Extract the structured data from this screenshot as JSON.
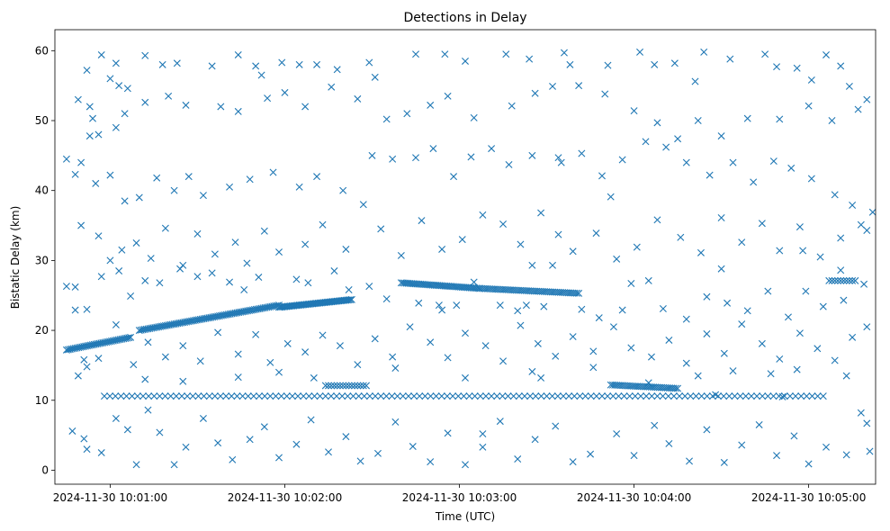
{
  "chart_data": {
    "type": "scatter",
    "title": "Detections in Delay",
    "xlabel": "Time (UTC)",
    "ylabel": "Bistatic Delay (km)",
    "marker": "x",
    "color": "#1f77b4",
    "x_unit": "seconds after 2024-11-30 10:00:00 UTC",
    "xlim": [
      41,
      323
    ],
    "ylim": [
      -2,
      63
    ],
    "xticks": [
      {
        "value": 60,
        "label": "2024-11-30 10:01:00"
      },
      {
        "value": 120,
        "label": "2024-11-30 10:02:00"
      },
      {
        "value": 180,
        "label": "2024-11-30 10:03:00"
      },
      {
        "value": 240,
        "label": "2024-11-30 10:04:00"
      },
      {
        "value": 300,
        "label": "2024-11-30 10:05:00"
      }
    ],
    "yticks": [
      {
        "value": 0,
        "label": "0"
      },
      {
        "value": 10,
        "label": "10"
      },
      {
        "value": 20,
        "label": "20"
      },
      {
        "value": 30,
        "label": "30"
      },
      {
        "value": 40,
        "label": "40"
      },
      {
        "value": 50,
        "label": "50"
      },
      {
        "value": 60,
        "label": "60"
      }
    ],
    "tracks": [
      {
        "name": "track-1",
        "x_start": 45,
        "x_end": 67,
        "y_start": 17.2,
        "y_end": 19.0,
        "step": 0.6
      },
      {
        "name": "track-2",
        "x_start": 70,
        "x_end": 118,
        "y_start": 20.0,
        "y_end": 23.6,
        "step": 0.6
      },
      {
        "name": "track-3",
        "x_start": 118,
        "x_end": 143,
        "y_start": 23.3,
        "y_end": 24.4,
        "step": 0.5
      },
      {
        "name": "track-4",
        "x_start": 160,
        "x_end": 187,
        "y_start": 26.8,
        "y_end": 26.0,
        "step": 0.6
      },
      {
        "name": "track-5",
        "x_start": 187,
        "x_end": 221,
        "y_start": 26.0,
        "y_end": 25.3,
        "step": 0.7
      },
      {
        "name": "track-6",
        "x_start": 232,
        "x_end": 255,
        "y_start": 12.2,
        "y_end": 11.7,
        "step": 0.7
      },
      {
        "name": "static-10.6",
        "x_start": 58,
        "x_end": 305,
        "y_start": 10.6,
        "y_end": 10.6,
        "step": 1.9
      },
      {
        "name": "static-12",
        "x_start": 134,
        "x_end": 148,
        "y_start": 12.1,
        "y_end": 12.1,
        "step": 1.0
      },
      {
        "name": "static-27",
        "x_start": 307,
        "x_end": 316,
        "y_start": 27.1,
        "y_end": 27.1,
        "step": 1.0
      }
    ],
    "clutter_points": [
      [
        57,
        59.4
      ],
      [
        62,
        58.2
      ],
      [
        60,
        56
      ],
      [
        63,
        55
      ],
      [
        52,
        57.2
      ],
      [
        49,
        53
      ],
      [
        66,
        54.6
      ],
      [
        53,
        52
      ],
      [
        65,
        51
      ],
      [
        54,
        50.3
      ],
      [
        62,
        49
      ],
      [
        56,
        48
      ],
      [
        53,
        47.8
      ],
      [
        72,
        59.3
      ],
      [
        78,
        58
      ],
      [
        83,
        58.2
      ],
      [
        95,
        57.8
      ],
      [
        104,
        59.4
      ],
      [
        110,
        57.8
      ],
      [
        112,
        56.5
      ],
      [
        119,
        58.3
      ],
      [
        125,
        58
      ],
      [
        131,
        58
      ],
      [
        138,
        57.3
      ],
      [
        149,
        58.3
      ],
      [
        151,
        56.2
      ],
      [
        165,
        59.5
      ],
      [
        175,
        59.5
      ],
      [
        182,
        58.5
      ],
      [
        196,
        59.5
      ],
      [
        204,
        58.8
      ],
      [
        216,
        59.7
      ],
      [
        242,
        59.8
      ],
      [
        264,
        59.8
      ],
      [
        273,
        58.8
      ],
      [
        285,
        59.5
      ],
      [
        289,
        57.7
      ],
      [
        306,
        59.4
      ],
      [
        314,
        54.9
      ],
      [
        301,
        55.8
      ],
      [
        296,
        57.5
      ],
      [
        311,
        57.8
      ],
      [
        261,
        55.6
      ],
      [
        254,
        58.2
      ],
      [
        247,
        58
      ],
      [
        231,
        57.9
      ],
      [
        218,
        58
      ],
      [
        72,
        52.6
      ],
      [
        80,
        53.5
      ],
      [
        86,
        52.2
      ],
      [
        98,
        52
      ],
      [
        104,
        51.3
      ],
      [
        114,
        53.2
      ],
      [
        120,
        54
      ],
      [
        127,
        52
      ],
      [
        136,
        54.8
      ],
      [
        145,
        53.1
      ],
      [
        155,
        50.2
      ],
      [
        162,
        51
      ],
      [
        170,
        52.2
      ],
      [
        176,
        53.5
      ],
      [
        185,
        50.4
      ],
      [
        198,
        52.1
      ],
      [
        206,
        53.9
      ],
      [
        212,
        54.9
      ],
      [
        221,
        55
      ],
      [
        230,
        53.8
      ],
      [
        240,
        51.4
      ],
      [
        248,
        49.7
      ],
      [
        255,
        47.4
      ],
      [
        262,
        50
      ],
      [
        270,
        47.8
      ],
      [
        279,
        50.3
      ],
      [
        290,
        50.2
      ],
      [
        300,
        52.1
      ],
      [
        308,
        50
      ],
      [
        317,
        51.6
      ],
      [
        320,
        53
      ],
      [
        50,
        44
      ],
      [
        55,
        41
      ],
      [
        60,
        42.2
      ],
      [
        65,
        38.5
      ],
      [
        70,
        39
      ],
      [
        76,
        41.8
      ],
      [
        82,
        40
      ],
      [
        87,
        42
      ],
      [
        92,
        39.3
      ],
      [
        101,
        40.5
      ],
      [
        108,
        41.6
      ],
      [
        116,
        42.6
      ],
      [
        125,
        40.5
      ],
      [
        131,
        42
      ],
      [
        140,
        40
      ],
      [
        150,
        45
      ],
      [
        157,
        44.5
      ],
      [
        165,
        44.7
      ],
      [
        171,
        46
      ],
      [
        178,
        42
      ],
      [
        184,
        44.8
      ],
      [
        191,
        46
      ],
      [
        197,
        43.7
      ],
      [
        205,
        45
      ],
      [
        214,
        44.7
      ],
      [
        222,
        45.3
      ],
      [
        229,
        42.1
      ],
      [
        236,
        44.4
      ],
      [
        244,
        47
      ],
      [
        251,
        46.2
      ],
      [
        258,
        44
      ],
      [
        266,
        42.2
      ],
      [
        274,
        44
      ],
      [
        281,
        41.2
      ],
      [
        288,
        44.2
      ],
      [
        294,
        43.2
      ],
      [
        301,
        41.7
      ],
      [
        309,
        39.4
      ],
      [
        315,
        37.9
      ],
      [
        322,
        36.9
      ],
      [
        45,
        44.5
      ],
      [
        48,
        42.3
      ],
      [
        50,
        35
      ],
      [
        56,
        33.5
      ],
      [
        60,
        30
      ],
      [
        64,
        31.5
      ],
      [
        69,
        32.5
      ],
      [
        74,
        30.3
      ],
      [
        79,
        34.6
      ],
      [
        85,
        29.3
      ],
      [
        90,
        33.8
      ],
      [
        96,
        30.9
      ],
      [
        103,
        32.6
      ],
      [
        107,
        29.6
      ],
      [
        113,
        34.2
      ],
      [
        118,
        31.2
      ],
      [
        127,
        32.3
      ],
      [
        133,
        35.1
      ],
      [
        141,
        31.6
      ],
      [
        147,
        38
      ],
      [
        153,
        34.5
      ],
      [
        160,
        30.7
      ],
      [
        167,
        35.7
      ],
      [
        174,
        31.6
      ],
      [
        181,
        33
      ],
      [
        188,
        36.5
      ],
      [
        195,
        35.2
      ],
      [
        201,
        32.3
      ],
      [
        208,
        36.8
      ],
      [
        214,
        33.7
      ],
      [
        219,
        31.3
      ],
      [
        227,
        33.9
      ],
      [
        234,
        30.2
      ],
      [
        241,
        31.9
      ],
      [
        248,
        35.8
      ],
      [
        256,
        33.3
      ],
      [
        263,
        31.1
      ],
      [
        270,
        36.1
      ],
      [
        277,
        32.6
      ],
      [
        284,
        35.3
      ],
      [
        290,
        31.4
      ],
      [
        297,
        34.8
      ],
      [
        304,
        30.5
      ],
      [
        311,
        33.2
      ],
      [
        318,
        35.1
      ],
      [
        320,
        34.3
      ],
      [
        45,
        26.3
      ],
      [
        48,
        26.2
      ],
      [
        52,
        23
      ],
      [
        57,
        27.7
      ],
      [
        63,
        28.5
      ],
      [
        67,
        24.9
      ],
      [
        72,
        27.1
      ],
      [
        77,
        26.8
      ],
      [
        84,
        28.8
      ],
      [
        90,
        27.7
      ],
      [
        95,
        28.2
      ],
      [
        101,
        26.9
      ],
      [
        106,
        25.8
      ],
      [
        111,
        27.6
      ],
      [
        124,
        27.3
      ],
      [
        128,
        26.8
      ],
      [
        137,
        28.5
      ],
      [
        142,
        25.8
      ],
      [
        149,
        26.3
      ],
      [
        155,
        24.5
      ],
      [
        166,
        23.9
      ],
      [
        174,
        22.9
      ],
      [
        179,
        23.6
      ],
      [
        194,
        23.6
      ],
      [
        200,
        22.8
      ],
      [
        209,
        23.4
      ],
      [
        222,
        23
      ],
      [
        228,
        21.8
      ],
      [
        236,
        22.9
      ],
      [
        245,
        27.1
      ],
      [
        250,
        23.1
      ],
      [
        258,
        21.6
      ],
      [
        265,
        24.8
      ],
      [
        272,
        23.9
      ],
      [
        279,
        22.8
      ],
      [
        286,
        25.6
      ],
      [
        293,
        21.9
      ],
      [
        299,
        25.6
      ],
      [
        305,
        23.4
      ],
      [
        312,
        24.3
      ],
      [
        319,
        26.6
      ],
      [
        48,
        22.9
      ],
      [
        51,
        15.8
      ],
      [
        56,
        16
      ],
      [
        62,
        20.8
      ],
      [
        68,
        15.1
      ],
      [
        73,
        18.3
      ],
      [
        79,
        16.2
      ],
      [
        85,
        17.8
      ],
      [
        91,
        15.6
      ],
      [
        97,
        19.7
      ],
      [
        104,
        16.6
      ],
      [
        110,
        19.4
      ],
      [
        115,
        15.4
      ],
      [
        121,
        18.1
      ],
      [
        127,
        16.9
      ],
      [
        133,
        19.3
      ],
      [
        139,
        17.8
      ],
      [
        145,
        15.1
      ],
      [
        151,
        18.8
      ],
      [
        157,
        16.2
      ],
      [
        163,
        20.5
      ],
      [
        170,
        18.3
      ],
      [
        176,
        16.1
      ],
      [
        182,
        19.6
      ],
      [
        189,
        17.8
      ],
      [
        195,
        15.6
      ],
      [
        201,
        20.7
      ],
      [
        207,
        18.1
      ],
      [
        213,
        16.3
      ],
      [
        219,
        19.1
      ],
      [
        226,
        17
      ],
      [
        233,
        20.5
      ],
      [
        239,
        17.5
      ],
      [
        246,
        16.2
      ],
      [
        252,
        18.6
      ],
      [
        258,
        15.3
      ],
      [
        265,
        19.5
      ],
      [
        271,
        16.7
      ],
      [
        277,
        20.9
      ],
      [
        284,
        18.1
      ],
      [
        290,
        15.9
      ],
      [
        297,
        19.6
      ],
      [
        303,
        17.4
      ],
      [
        309,
        15.7
      ],
      [
        315,
        19
      ],
      [
        320,
        20.5
      ],
      [
        49,
        13.5
      ],
      [
        52,
        14.8
      ],
      [
        47,
        5.6
      ],
      [
        51,
        4.5
      ],
      [
        52,
        3
      ],
      [
        57,
        2.5
      ],
      [
        62,
        7.4
      ],
      [
        66,
        5.8
      ],
      [
        69,
        0.8
      ],
      [
        73,
        8.6
      ],
      [
        77,
        5.4
      ],
      [
        82,
        0.8
      ],
      [
        86,
        3.3
      ],
      [
        92,
        7.4
      ],
      [
        97,
        3.9
      ],
      [
        102,
        1.5
      ],
      [
        108,
        4.4
      ],
      [
        113,
        6.2
      ],
      [
        118,
        1.8
      ],
      [
        124,
        3.7
      ],
      [
        129,
        7.2
      ],
      [
        135,
        2.6
      ],
      [
        141,
        4.8
      ],
      [
        146,
        1.3
      ],
      [
        152,
        2.4
      ],
      [
        158,
        6.9
      ],
      [
        164,
        3.4
      ],
      [
        170,
        1.2
      ],
      [
        176,
        5.3
      ],
      [
        182,
        0.8
      ],
      [
        188,
        3.3
      ],
      [
        194,
        7
      ],
      [
        200,
        1.6
      ],
      [
        206,
        4.4
      ],
      [
        213,
        6.3
      ],
      [
        219,
        1.2
      ],
      [
        225,
        2.3
      ],
      [
        234,
        5.2
      ],
      [
        240,
        2.1
      ],
      [
        247,
        6.4
      ],
      [
        252,
        3.8
      ],
      [
        259,
        1.3
      ],
      [
        265,
        5.8
      ],
      [
        271,
        1.1
      ],
      [
        277,
        3.6
      ],
      [
        283,
        6.5
      ],
      [
        289,
        2.1
      ],
      [
        295,
        4.9
      ],
      [
        300,
        0.9
      ],
      [
        306,
        3.3
      ],
      [
        313,
        2.2
      ],
      [
        318,
        8.2
      ],
      [
        321,
        2.7
      ],
      [
        320,
        6.7
      ],
      [
        72,
        13
      ],
      [
        85,
        12.7
      ],
      [
        104,
        13.3
      ],
      [
        118,
        14
      ],
      [
        130,
        13.2
      ],
      [
        158,
        14.6
      ],
      [
        182,
        13.2
      ],
      [
        205,
        14.1
      ],
      [
        226,
        14.7
      ],
      [
        262,
        13.5
      ],
      [
        274,
        14.2
      ],
      [
        287,
        13.8
      ],
      [
        296,
        14.4
      ],
      [
        313,
        13.5
      ],
      [
        185,
        26.9
      ],
      [
        205,
        29.3
      ],
      [
        212,
        29.3
      ],
      [
        239,
        26.7
      ],
      [
        270,
        28.8
      ],
      [
        298,
        31.4
      ],
      [
        311,
        28.6
      ],
      [
        215,
        44
      ],
      [
        232,
        39.1
      ],
      [
        173,
        23.6
      ],
      [
        203,
        23.6
      ],
      [
        208,
        13.2
      ],
      [
        188,
        5.2
      ],
      [
        245,
        12.5
      ],
      [
        268,
        10.8
      ],
      [
        291,
        10.5
      ]
    ]
  }
}
